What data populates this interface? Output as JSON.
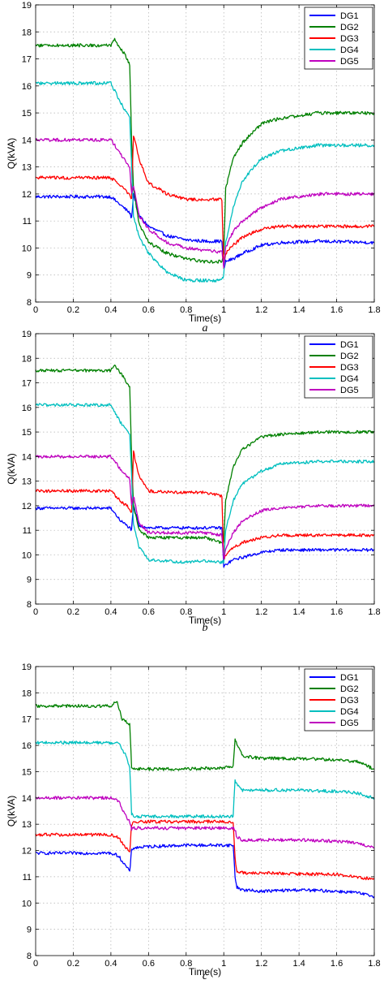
{
  "chart_data": [
    {
      "type": "line",
      "caption": "a",
      "xlabel": "Time(s)",
      "ylabel": "Q(kVA)",
      "xlim": [
        0,
        1.8
      ],
      "ylim": [
        8,
        19
      ],
      "xticks": [
        "0",
        "0.2",
        "0.4",
        "0.6",
        "0.8",
        "1",
        "1.2",
        "1.4",
        "1.6",
        "1.8"
      ],
      "yticks": [
        "8",
        "9",
        "10",
        "11",
        "12",
        "13",
        "14",
        "15",
        "16",
        "17",
        "18",
        "19"
      ],
      "grid": true,
      "legend_position": "top-right",
      "series": [
        {
          "name": "DG1",
          "color": "#0000ff",
          "x": [
            0,
            0.4,
            0.45,
            0.5,
            0.51,
            0.52,
            0.55,
            0.6,
            0.7,
            0.8,
            0.9,
            0.99,
            1.0,
            1.01,
            1.05,
            1.1,
            1.2,
            1.3,
            1.5,
            1.8
          ],
          "y": [
            11.9,
            11.9,
            11.6,
            11.3,
            11.1,
            12.0,
            11.2,
            10.8,
            10.45,
            10.3,
            10.25,
            10.25,
            9.2,
            9.5,
            9.6,
            9.8,
            10.1,
            10.2,
            10.25,
            10.2
          ]
        },
        {
          "name": "DG2",
          "color": "#008000",
          "x": [
            0,
            0.4,
            0.42,
            0.47,
            0.5,
            0.51,
            0.52,
            0.55,
            0.6,
            0.7,
            0.8,
            0.9,
            0.99,
            1.0,
            1.01,
            1.05,
            1.1,
            1.2,
            1.3,
            1.5,
            1.8
          ],
          "y": [
            17.5,
            17.5,
            17.7,
            17.2,
            16.8,
            14.0,
            12.2,
            10.9,
            10.2,
            9.8,
            9.6,
            9.5,
            9.5,
            9.8,
            12.2,
            13.3,
            13.9,
            14.6,
            14.8,
            15.0,
            15.0
          ]
        },
        {
          "name": "DG3",
          "color": "#ff0000",
          "x": [
            0,
            0.4,
            0.45,
            0.5,
            0.51,
            0.52,
            0.55,
            0.6,
            0.7,
            0.8,
            0.9,
            0.99,
            1.0,
            1.01,
            1.05,
            1.1,
            1.2,
            1.3,
            1.5,
            1.8
          ],
          "y": [
            12.6,
            12.6,
            12.3,
            12.0,
            11.8,
            14.2,
            13.3,
            12.4,
            12.0,
            11.8,
            11.8,
            11.8,
            9.3,
            9.8,
            10.1,
            10.4,
            10.7,
            10.8,
            10.8,
            10.8
          ]
        },
        {
          "name": "DG4",
          "color": "#00bfbf",
          "x": [
            0,
            0.4,
            0.45,
            0.5,
            0.51,
            0.52,
            0.55,
            0.6,
            0.7,
            0.8,
            0.9,
            0.99,
            1.0,
            1.01,
            1.05,
            1.1,
            1.2,
            1.3,
            1.5,
            1.8
          ],
          "y": [
            16.1,
            16.1,
            15.4,
            14.8,
            13.0,
            11.2,
            10.4,
            9.8,
            9.1,
            8.8,
            8.8,
            8.8,
            9.0,
            10.2,
            11.5,
            12.5,
            13.3,
            13.6,
            13.8,
            13.8
          ]
        },
        {
          "name": "DG5",
          "color": "#bf00bf",
          "x": [
            0,
            0.4,
            0.45,
            0.5,
            0.51,
            0.52,
            0.55,
            0.6,
            0.7,
            0.8,
            0.9,
            0.99,
            1.0,
            1.01,
            1.05,
            1.1,
            1.2,
            1.3,
            1.5,
            1.8
          ],
          "y": [
            14.0,
            14.0,
            13.5,
            13.0,
            12.0,
            12.3,
            11.2,
            10.7,
            10.2,
            10.0,
            9.9,
            9.85,
            9.3,
            10.0,
            10.6,
            11.0,
            11.5,
            11.8,
            12.0,
            12.0
          ]
        }
      ]
    },
    {
      "type": "line",
      "caption": "b",
      "xlabel": "Time(s)",
      "ylabel": "Q(kVA)",
      "xlim": [
        0,
        1.8
      ],
      "ylim": [
        8,
        19
      ],
      "xticks": [
        "0",
        "0.2",
        "0.4",
        "0.6",
        "0.8",
        "1",
        "1.2",
        "1.4",
        "1.6",
        "1.8"
      ],
      "yticks": [
        "8",
        "9",
        "10",
        "11",
        "12",
        "13",
        "14",
        "15",
        "16",
        "17",
        "18",
        "19"
      ],
      "grid": true,
      "legend_position": "top-right",
      "series": [
        {
          "name": "DG1",
          "color": "#0000ff",
          "x": [
            0,
            0.4,
            0.45,
            0.5,
            0.51,
            0.52,
            0.55,
            0.6,
            0.7,
            0.8,
            0.9,
            0.99,
            1.0,
            1.01,
            1.05,
            1.1,
            1.2,
            1.3,
            1.5,
            1.8
          ],
          "y": [
            11.9,
            11.9,
            11.4,
            11.1,
            11.0,
            12.0,
            11.2,
            11.1,
            11.1,
            11.1,
            11.1,
            11.1,
            9.5,
            9.6,
            9.8,
            9.9,
            10.1,
            10.2,
            10.2,
            10.2
          ]
        },
        {
          "name": "DG2",
          "color": "#008000",
          "x": [
            0,
            0.4,
            0.42,
            0.47,
            0.5,
            0.51,
            0.52,
            0.55,
            0.6,
            0.7,
            0.8,
            0.9,
            0.99,
            1.0,
            1.01,
            1.05,
            1.1,
            1.2,
            1.3,
            1.5,
            1.8
          ],
          "y": [
            17.5,
            17.5,
            17.7,
            17.2,
            16.8,
            14.0,
            12.0,
            11.0,
            10.7,
            10.7,
            10.7,
            10.7,
            10.5,
            10.5,
            12.2,
            13.6,
            14.3,
            14.8,
            14.9,
            15.0,
            15.0
          ]
        },
        {
          "name": "DG3",
          "color": "#ff0000",
          "x": [
            0,
            0.4,
            0.45,
            0.5,
            0.51,
            0.52,
            0.55,
            0.6,
            0.7,
            0.8,
            0.9,
            0.99,
            1.0,
            1.01,
            1.05,
            1.1,
            1.2,
            1.3,
            1.5,
            1.8
          ],
          "y": [
            12.6,
            12.6,
            12.2,
            11.9,
            11.7,
            14.2,
            13.2,
            12.6,
            12.55,
            12.55,
            12.55,
            12.4,
            9.8,
            10.0,
            10.3,
            10.5,
            10.7,
            10.8,
            10.8,
            10.8
          ]
        },
        {
          "name": "DG4",
          "color": "#00bfbf",
          "x": [
            0,
            0.4,
            0.45,
            0.5,
            0.51,
            0.52,
            0.55,
            0.6,
            0.7,
            0.8,
            0.9,
            0.99,
            1.0,
            1.01,
            1.05,
            1.1,
            1.2,
            1.3,
            1.5,
            1.8
          ],
          "y": [
            16.1,
            16.1,
            15.4,
            14.9,
            13.2,
            11.2,
            10.3,
            9.8,
            9.75,
            9.7,
            9.75,
            9.7,
            9.7,
            11.0,
            12.2,
            12.9,
            13.4,
            13.7,
            13.8,
            13.8
          ]
        },
        {
          "name": "DG5",
          "color": "#bf00bf",
          "x": [
            0,
            0.4,
            0.45,
            0.5,
            0.51,
            0.52,
            0.55,
            0.6,
            0.7,
            0.8,
            0.9,
            0.99,
            1.0,
            1.01,
            1.05,
            1.1,
            1.2,
            1.3,
            1.5,
            1.8
          ],
          "y": [
            14.0,
            14.0,
            13.5,
            13.1,
            12.0,
            12.4,
            11.3,
            10.9,
            10.9,
            10.9,
            10.9,
            10.8,
            9.8,
            10.2,
            10.9,
            11.4,
            11.8,
            11.9,
            12.0,
            12.0
          ]
        }
      ]
    },
    {
      "type": "line",
      "caption": "c",
      "xlabel": "Time(s)",
      "ylabel": "Q(kVA)",
      "xlim": [
        0,
        1.8
      ],
      "ylim": [
        8,
        19
      ],
      "xticks": [
        "0",
        "0.2",
        "0.4",
        "0.6",
        "0.8",
        "1",
        "1.2",
        "1.4",
        "1.6",
        "1.8"
      ],
      "yticks": [
        "8",
        "9",
        "10",
        "11",
        "12",
        "13",
        "14",
        "15",
        "16",
        "17",
        "18",
        "19"
      ],
      "grid": true,
      "legend_position": "top-right",
      "series": [
        {
          "name": "DG1",
          "color": "#0000ff",
          "x": [
            0,
            0.4,
            0.44,
            0.48,
            0.5,
            0.51,
            0.52,
            0.6,
            0.8,
            1.0,
            1.05,
            1.06,
            1.07,
            1.1,
            1.2,
            1.4,
            1.6,
            1.7,
            1.8
          ],
          "y": [
            11.9,
            11.9,
            11.8,
            11.4,
            11.2,
            12.0,
            12.1,
            12.15,
            12.2,
            12.2,
            12.2,
            11.0,
            10.6,
            10.5,
            10.45,
            10.5,
            10.45,
            10.4,
            10.25
          ]
        },
        {
          "name": "DG2",
          "color": "#008000",
          "x": [
            0,
            0.4,
            0.43,
            0.46,
            0.5,
            0.51,
            0.52,
            0.6,
            0.8,
            1.0,
            1.05,
            1.06,
            1.07,
            1.1,
            1.2,
            1.4,
            1.6,
            1.7,
            1.8
          ],
          "y": [
            17.5,
            17.5,
            17.7,
            17.0,
            16.8,
            15.2,
            15.1,
            15.1,
            15.1,
            15.15,
            15.2,
            16.3,
            16.0,
            15.6,
            15.5,
            15.5,
            15.45,
            15.4,
            15.1
          ]
        },
        {
          "name": "DG3",
          "color": "#ff0000",
          "x": [
            0,
            0.4,
            0.44,
            0.48,
            0.5,
            0.51,
            0.52,
            0.6,
            0.8,
            1.0,
            1.05,
            1.06,
            1.07,
            1.1,
            1.2,
            1.4,
            1.6,
            1.7,
            1.8
          ],
          "y": [
            12.6,
            12.6,
            12.5,
            12.1,
            11.9,
            13.0,
            13.1,
            13.1,
            13.1,
            13.1,
            13.1,
            11.7,
            11.2,
            11.15,
            11.15,
            11.1,
            11.1,
            11.0,
            10.9
          ]
        },
        {
          "name": "DG4",
          "color": "#00bfbf",
          "x": [
            0,
            0.4,
            0.44,
            0.48,
            0.5,
            0.51,
            0.52,
            0.6,
            0.8,
            1.0,
            1.05,
            1.06,
            1.07,
            1.1,
            1.2,
            1.4,
            1.6,
            1.7,
            1.8
          ],
          "y": [
            16.1,
            16.1,
            16.1,
            15.6,
            15.2,
            13.4,
            13.3,
            13.3,
            13.3,
            13.3,
            13.3,
            14.7,
            14.5,
            14.3,
            14.3,
            14.3,
            14.25,
            14.2,
            14.0
          ]
        },
        {
          "name": "DG5",
          "color": "#bf00bf",
          "x": [
            0,
            0.4,
            0.44,
            0.48,
            0.5,
            0.51,
            0.52,
            0.6,
            0.8,
            1.0,
            1.05,
            1.06,
            1.07,
            1.1,
            1.2,
            1.4,
            1.6,
            1.7,
            1.8
          ],
          "y": [
            14.0,
            14.0,
            13.9,
            13.3,
            13.1,
            12.8,
            12.85,
            12.85,
            12.85,
            12.85,
            12.85,
            12.8,
            12.5,
            12.4,
            12.4,
            12.4,
            12.35,
            12.3,
            12.1
          ]
        }
      ]
    }
  ]
}
